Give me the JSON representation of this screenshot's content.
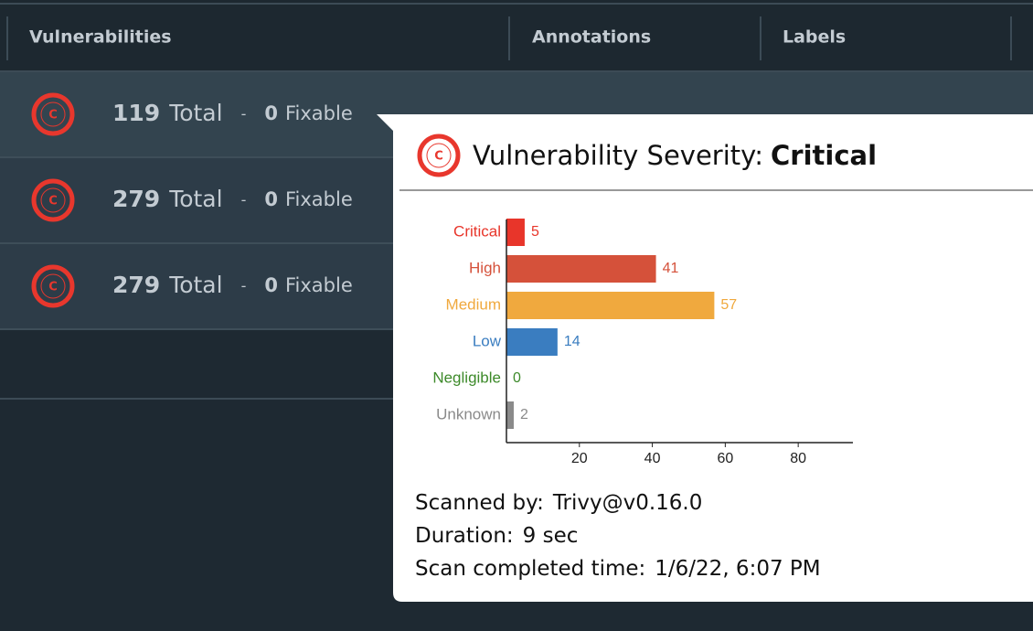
{
  "table": {
    "headers": [
      "Vulnerabilities",
      "Annotations",
      "Labels"
    ],
    "rows": [
      {
        "icon": "C",
        "total": 119,
        "total_word": "Total",
        "separator": "-",
        "fixable": 0,
        "fixable_word": "Fixable"
      },
      {
        "icon": "C",
        "total": 279,
        "total_word": "Total",
        "separator": "-",
        "fixable": 0,
        "fixable_word": "Fixable"
      },
      {
        "icon": "C",
        "total": 279,
        "total_word": "Total",
        "separator": "-",
        "fixable": 0,
        "fixable_word": "Fixable"
      }
    ]
  },
  "tooltip": {
    "icon": "C",
    "title": "Vulnerability Severity:",
    "severity": "Critical",
    "chart": {
      "type": "bar",
      "orientation": "horizontal",
      "categories": [
        "Critical",
        "High",
        "Medium",
        "Low",
        "Negligible",
        "Unknown"
      ],
      "values": [
        5,
        41,
        57,
        14,
        0,
        2
      ],
      "colors": [
        "#e8352a",
        "#d5513a",
        "#f0a93e",
        "#3a7dc0",
        "#3d8a2a",
        "#8a8a8a"
      ],
      "xlim": [
        0,
        95
      ],
      "xticks": [
        20,
        40,
        60,
        80
      ]
    },
    "details": [
      {
        "label": "Scanned by:",
        "value": "Trivy@v0.16.0"
      },
      {
        "label": "Duration:",
        "value": "9 sec"
      },
      {
        "label": "Scan completed time:",
        "value": "1/6/22, 6:07 PM"
      }
    ]
  }
}
